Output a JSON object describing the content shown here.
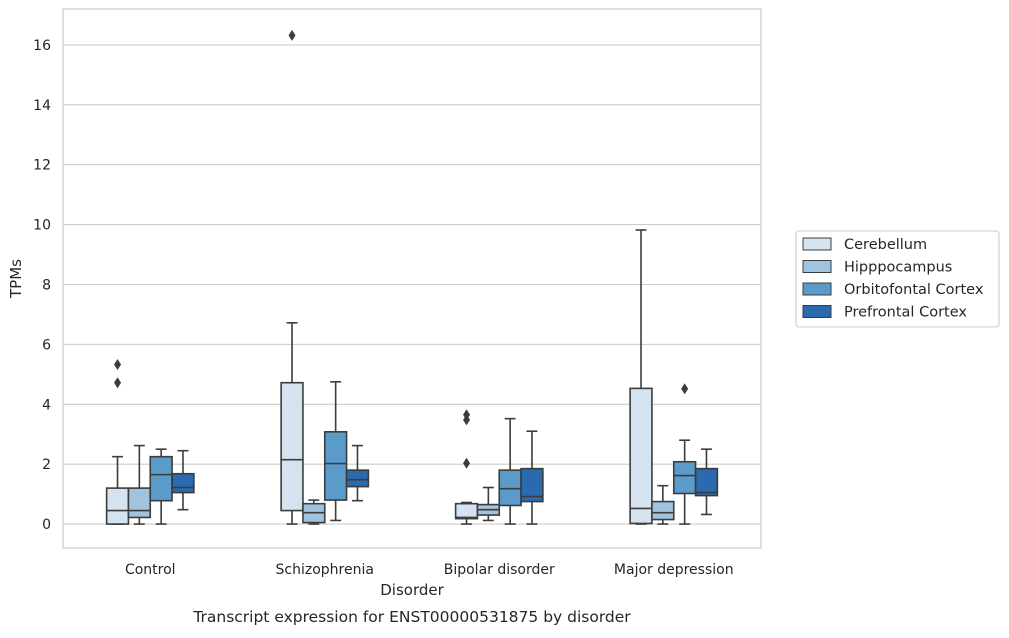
{
  "chart_data": {
    "type": "box",
    "xlabel": "Disorder",
    "ylabel": "TPMs",
    "caption": "Transcript expression for ENST00000531875 by disorder",
    "ylim": [
      -0.8,
      17.2
    ],
    "yticks": [
      0,
      2,
      4,
      6,
      8,
      10,
      12,
      14,
      16
    ],
    "grid": true,
    "legend_position": "right",
    "categories": [
      "Control",
      "Schizophrenia",
      "Bipolar disorder",
      "Major depression"
    ],
    "series": [
      {
        "name": "Cerebellum",
        "color": "#d5e3f1",
        "boxes": [
          {
            "min": 0,
            "q1": 0,
            "median": 0.45,
            "q3": 1.2,
            "max": 2.25,
            "outliers": [
              4.72,
              5.33
            ]
          },
          {
            "min": 0,
            "q1": 0.45,
            "median": 2.15,
            "q3": 4.72,
            "max": 6.72,
            "outliers": [
              16.32
            ]
          },
          {
            "min": 0,
            "q1": 0.18,
            "median": 0.22,
            "q3": 0.68,
            "max": 0.72,
            "outliers": [
              2.03,
              3.48,
              3.65
            ]
          },
          {
            "min": 0,
            "q1": 0.02,
            "median": 0.52,
            "q3": 4.53,
            "max": 9.82,
            "outliers": []
          }
        ]
      },
      {
        "name": "Hipppocampus",
        "color": "#a0c4df",
        "boxes": [
          {
            "min": 0,
            "q1": 0.22,
            "median": 0.45,
            "q3": 1.2,
            "max": 2.62,
            "outliers": []
          },
          {
            "min": 0,
            "q1": 0.05,
            "median": 0.38,
            "q3": 0.68,
            "max": 0.8,
            "outliers": []
          },
          {
            "min": 0.12,
            "q1": 0.3,
            "median": 0.48,
            "q3": 0.65,
            "max": 1.22,
            "outliers": []
          },
          {
            "min": 0,
            "q1": 0.15,
            "median": 0.38,
            "q3": 0.75,
            "max": 1.28,
            "outliers": []
          }
        ]
      },
      {
        "name": "Orbitofontal Cortex",
        "color": "#5b9bc9",
        "boxes": [
          {
            "min": 0,
            "q1": 0.78,
            "median": 1.65,
            "q3": 2.25,
            "max": 2.5,
            "outliers": []
          },
          {
            "min": 0.12,
            "q1": 0.8,
            "median": 2.02,
            "q3": 3.08,
            "max": 4.75,
            "outliers": []
          },
          {
            "min": 0,
            "q1": 0.62,
            "median": 1.18,
            "q3": 1.8,
            "max": 3.52,
            "outliers": []
          },
          {
            "min": 0,
            "q1": 1.02,
            "median": 1.62,
            "q3": 2.08,
            "max": 2.8,
            "outliers": [
              4.52
            ]
          }
        ]
      },
      {
        "name": "Prefrontal Cortex",
        "color": "#2b6aae",
        "boxes": [
          {
            "min": 0.48,
            "q1": 1.05,
            "median": 1.22,
            "q3": 1.68,
            "max": 2.45,
            "outliers": []
          },
          {
            "min": 0.78,
            "q1": 1.25,
            "median": 1.48,
            "q3": 1.8,
            "max": 2.62,
            "outliers": []
          },
          {
            "min": 0,
            "q1": 0.75,
            "median": 0.92,
            "q3": 1.85,
            "max": 3.1,
            "outliers": []
          },
          {
            "min": 0.32,
            "q1": 0.95,
            "median": 1.05,
            "q3": 1.85,
            "max": 2.5,
            "outliers": []
          }
        ]
      }
    ]
  }
}
